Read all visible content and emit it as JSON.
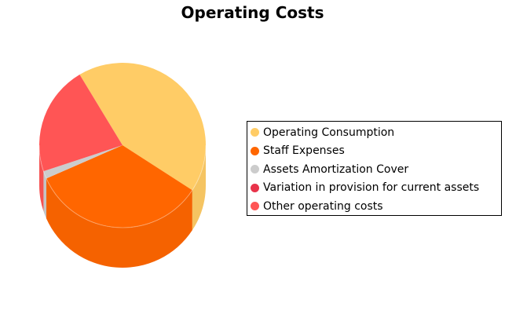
{
  "chart_data": {
    "type": "pie",
    "title": "Operating Costs",
    "style": "3d-cylinder",
    "legend_position": "right",
    "slices": [
      {
        "label": "Operating Consumption",
        "value": 42.8,
        "color": "#ffcc66"
      },
      {
        "label": "Staff Expenses",
        "value": 34.2,
        "color": "#ff6600"
      },
      {
        "label": "Assets Amortization Cover",
        "value": 1.5,
        "color": "#cccccc"
      },
      {
        "label": "Variation in provision for current assets",
        "value": 0.0,
        "color": "#e8334a"
      },
      {
        "label": "Other operating costs",
        "value": 21.5,
        "color": "#ff5555"
      }
    ]
  }
}
